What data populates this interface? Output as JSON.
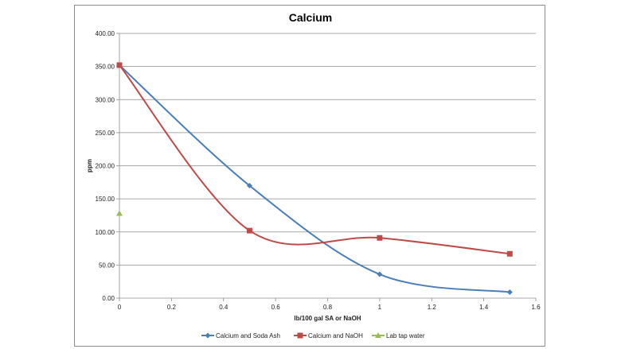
{
  "chart_data": {
    "type": "line",
    "title": "Calcium",
    "xlabel": "lb/100 gal SA or NaOH",
    "ylabel": "ppm",
    "xlim": [
      0,
      1.6
    ],
    "ylim": [
      0,
      400
    ],
    "x_ticks": [
      "0",
      "0.2",
      "0.4",
      "0.6",
      "0.8",
      "1",
      "1.2",
      "1.4",
      "1.6"
    ],
    "y_ticks": [
      "0.00",
      "50.00",
      "100.00",
      "150.00",
      "200.00",
      "250.00",
      "300.00",
      "350.00",
      "400.00"
    ],
    "grid": "horizontal",
    "legend_position": "bottom",
    "series": [
      {
        "name": "Calcium and Soda Ash",
        "color": "#4a7ebb",
        "marker": "diamond",
        "x": [
          0,
          0.5,
          1.0,
          1.5
        ],
        "y": [
          352,
          170,
          36,
          9
        ]
      },
      {
        "name": "Calcium and NaOH",
        "color": "#be4b48",
        "marker": "square",
        "x": [
          0,
          0.5,
          1.0,
          1.5
        ],
        "y": [
          352,
          102,
          91,
          67
        ]
      },
      {
        "name": "Lab tap water",
        "color": "#9bbb59",
        "marker": "triangle",
        "x": [
          0
        ],
        "y": [
          128
        ]
      }
    ]
  }
}
